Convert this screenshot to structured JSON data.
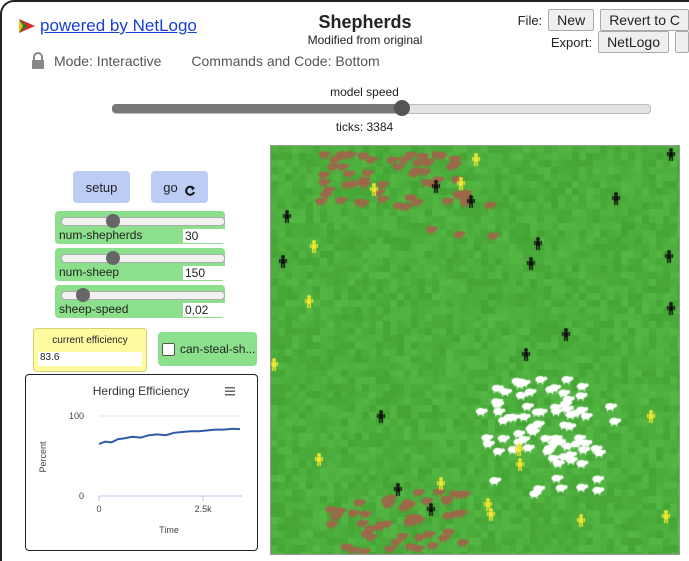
{
  "header": {
    "powered_by": "powered by NetLogo",
    "title": "Shepherds",
    "subtitle": "Modified from original",
    "file_label": "File:",
    "new_label": "New",
    "revert_label": "Revert to C",
    "export_label": "Export:",
    "export_netlogo_label": "NetLogo"
  },
  "mode": {
    "lock_icon": "lock-icon",
    "mode_text": "Mode: Interactive",
    "commands_text": "Commands and Code: Bottom"
  },
  "speed": {
    "label": "model speed",
    "value_fraction": 0.54,
    "ticks_text": "ticks: 3384"
  },
  "buttons": {
    "setup_label": "setup",
    "go_label": "go",
    "go_icon": "forever-icon"
  },
  "sliders": [
    {
      "name": "num-shepherds",
      "value": "30",
      "fraction": 0.3
    },
    {
      "name": "num-sheep",
      "value": "150",
      "fraction": 0.3
    },
    {
      "name": "sheep-speed",
      "value": "0,02",
      "fraction": 0.1
    }
  ],
  "monitor": {
    "label": "current efficiency",
    "value": "83.6"
  },
  "switch": {
    "label": "can-steal-sh...",
    "checked": false
  },
  "plot": {
    "title": "Herding Efficiency",
    "menu_icon": "hamburger-menu-icon"
  },
  "chart_data": {
    "type": "line",
    "title": "Herding Efficiency",
    "xlabel": "Time",
    "ylabel": "Percent",
    "x_ticks": [
      "0",
      "2.5k"
    ],
    "y_ticks": [
      "0",
      "100"
    ],
    "xlim": [
      0,
      3384
    ],
    "ylim": [
      0,
      100
    ],
    "grid": true,
    "series": [
      {
        "color": "#2f5aa8",
        "x": [
          0,
          150,
          300,
          450,
          600,
          800,
          1000,
          1200,
          1400,
          1600,
          1800,
          2000,
          2200,
          2400,
          2600,
          2800,
          3000,
          3200,
          3384
        ],
        "y": [
          65,
          68,
          67,
          71,
          72,
          74,
          73,
          76,
          77,
          76,
          79,
          80,
          81,
          81,
          82,
          83,
          83,
          84,
          83.6
        ]
      }
    ]
  },
  "world": {
    "background": "#4cae3c",
    "sheep_color": "#ffffff",
    "brown_sheep_color": "#9b6a4a",
    "shepherd_black_color": "#111111",
    "shepherd_yellow_color": "#f2e830"
  }
}
